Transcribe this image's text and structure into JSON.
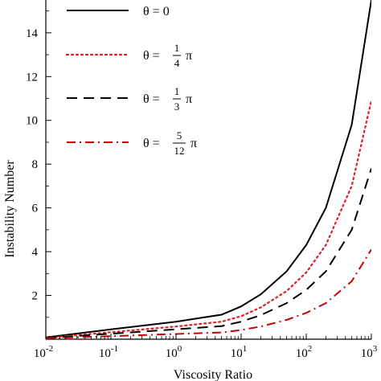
{
  "chart_data": {
    "type": "line",
    "xlabel": "Viscosity Ratio",
    "ylabel": "Instability Number",
    "xscale": "log",
    "xlim": [
      0.01,
      1000
    ],
    "ylim": [
      0,
      15.5
    ],
    "x_ticks": [
      {
        "value": 0.01,
        "base": "10",
        "exp": "-2"
      },
      {
        "value": 0.1,
        "base": "10",
        "exp": "-1"
      },
      {
        "value": 1,
        "base": "10",
        "exp": "0"
      },
      {
        "value": 10,
        "base": "10",
        "exp": "1"
      },
      {
        "value": 100,
        "base": "10",
        "exp": "2"
      },
      {
        "value": 1000,
        "base": "10",
        "exp": "3"
      }
    ],
    "y_ticks": [
      2,
      4,
      6,
      8,
      10,
      12,
      14
    ],
    "grid": false,
    "legend_position": "top-left",
    "series": [
      {
        "name": "θ = 0",
        "legend": {
          "prefix": "θ = 0",
          "num": "",
          "den": "",
          "suffix": ""
        },
        "color": "#000000",
        "dash": "solid",
        "x": [
          0.01,
          0.1,
          1,
          5,
          10,
          20,
          50,
          100,
          200,
          500,
          1000
        ],
        "y": [
          0.08,
          0.45,
          0.8,
          1.12,
          1.5,
          2.05,
          3.1,
          4.3,
          6.0,
          9.8,
          15.5
        ]
      },
      {
        "name": "θ = 1/4 π",
        "legend": {
          "prefix": "θ =",
          "num": "1",
          "den": "4",
          "suffix": "π"
        },
        "color": "#e02020",
        "dash": "dotted",
        "x": [
          0.01,
          0.1,
          1,
          5,
          10,
          20,
          50,
          100,
          200,
          500,
          1000
        ],
        "y": [
          0.06,
          0.32,
          0.58,
          0.8,
          1.05,
          1.45,
          2.2,
          3.05,
          4.3,
          7.0,
          10.9
        ]
      },
      {
        "name": "θ = 1/3 π",
        "legend": {
          "prefix": "θ =",
          "num": "1",
          "den": "3",
          "suffix": "π"
        },
        "color": "#000000",
        "dash": "dashed",
        "x": [
          0.01,
          0.1,
          1,
          5,
          10,
          20,
          50,
          100,
          200,
          500,
          1000
        ],
        "y": [
          0.05,
          0.25,
          0.45,
          0.6,
          0.8,
          1.1,
          1.65,
          2.25,
          3.1,
          5.0,
          7.8
        ]
      },
      {
        "name": "θ = 5/12 π",
        "legend": {
          "prefix": "θ =",
          "num": "5",
          "den": "12",
          "suffix": "π"
        },
        "color": "#cc0000",
        "dash": "dashdot",
        "x": [
          0.01,
          0.1,
          1,
          5,
          10,
          20,
          50,
          100,
          200,
          500,
          1000
        ],
        "y": [
          0.04,
          0.14,
          0.24,
          0.31,
          0.42,
          0.58,
          0.88,
          1.2,
          1.65,
          2.65,
          4.1
        ]
      }
    ]
  }
}
